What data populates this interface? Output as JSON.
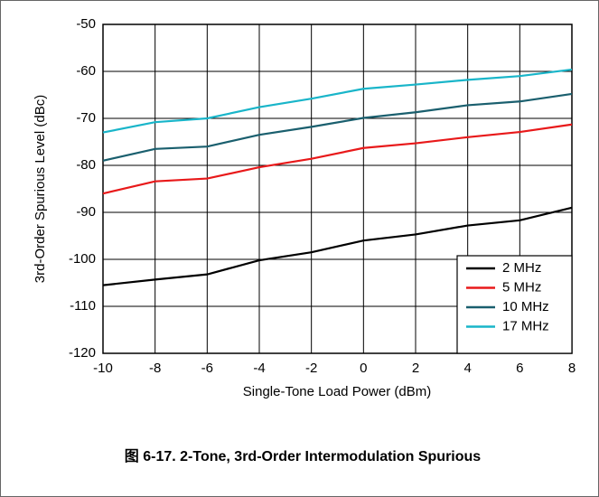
{
  "chart_data": {
    "type": "line",
    "xlabel": "Single-Tone Load Power (dBm)",
    "ylabel": "3rd-Order Spurious Level (dBc)",
    "caption": "图 6-17. 2-Tone, 3rd-Order Intermodulation Spurious",
    "x": [
      -10,
      -8,
      -6,
      -4,
      -2,
      0,
      2,
      4,
      6,
      8
    ],
    "series": [
      {
        "name": "2 MHz",
        "color": "#000000",
        "values": [
          -105.5,
          -104.3,
          -103.2,
          -100.2,
          -98.5,
          -96,
          -94.7,
          -92.8,
          -91.7,
          -89
        ]
      },
      {
        "name": "5 MHz",
        "color": "#e8191a",
        "values": [
          -86,
          -83.4,
          -82.8,
          -80.4,
          -78.6,
          -76.3,
          -75.3,
          -74,
          -72.9,
          -71.3
        ]
      },
      {
        "name": "10 MHz",
        "color": "#1a5f6e",
        "values": [
          -79,
          -76.5,
          -76,
          -73.5,
          -71.8,
          -69.9,
          -68.7,
          -67.2,
          -66.4,
          -64.8
        ]
      },
      {
        "name": "17 MHz",
        "color": "#19b5c9",
        "values": [
          -73,
          -70.8,
          -70,
          -67.6,
          -65.8,
          -63.7,
          -62.8,
          -61.8,
          -61,
          -59.6
        ]
      }
    ],
    "xlim": [
      -10,
      8
    ],
    "xticks": [
      -10,
      -8,
      -6,
      -4,
      -2,
      0,
      2,
      4,
      6,
      8
    ],
    "ylim": [
      -120,
      -50
    ],
    "yticks": [
      -120,
      -110,
      -100,
      -90,
      -80,
      -70,
      -60,
      -50
    ],
    "grid": true,
    "legend": "lower right"
  }
}
